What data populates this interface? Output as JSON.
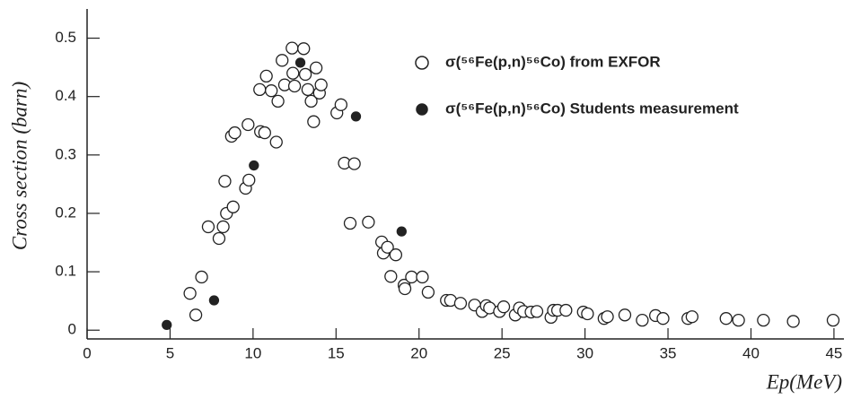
{
  "chart_data": {
    "type": "scatter",
    "x_label": "Ep(MeV)",
    "y_label": "Cross section (barn)",
    "xlim": [
      0,
      45.6
    ],
    "ylim": [
      -0.015,
      0.55
    ],
    "xticks": [
      0,
      5,
      10,
      15,
      20,
      25,
      30,
      35,
      40,
      45
    ],
    "yticks": [
      0,
      0.1,
      0.2,
      0.3,
      0.4,
      0.5
    ],
    "series": [
      {
        "name": "σ(⁵⁶Fe(p,n)⁵⁶Co) from EXFOR",
        "color": "#222",
        "filled": false,
        "x": [
          6.2,
          6.55,
          6.9,
          7.3,
          7.95,
          8.2,
          8.3,
          8.4,
          8.8,
          8.7,
          8.9,
          9.55,
          9.75,
          9.7,
          10.4,
          10.45,
          10.7,
          10.8,
          11.1,
          11.4,
          11.5,
          11.75,
          11.9,
          12.35,
          12.4,
          12.5,
          13.05,
          13.15,
          13.3,
          13.5,
          13.65,
          13.8,
          14.0,
          14.1,
          15.05,
          15.3,
          15.5,
          16.1,
          15.85,
          16.95,
          17.75,
          17.85,
          18.1,
          18.3,
          18.6,
          19.1,
          19.15,
          19.55,
          20.2,
          20.55,
          21.65,
          21.9,
          22.5,
          23.35,
          23.8,
          24.05,
          24.25,
          24.85,
          25.1,
          25.8,
          26.05,
          26.3,
          26.75,
          27.1,
          27.95,
          28.1,
          28.35,
          28.85,
          29.9,
          30.15,
          31.15,
          31.35,
          32.4,
          33.45,
          34.25,
          34.7,
          36.2,
          36.45,
          38.5,
          39.25,
          40.75,
          42.55,
          44.95
        ],
        "values": [
          0.063,
          0.026,
          0.091,
          0.177,
          0.157,
          0.177,
          0.255,
          0.2,
          0.211,
          0.332,
          0.338,
          0.243,
          0.257,
          0.352,
          0.412,
          0.34,
          0.338,
          0.435,
          0.41,
          0.322,
          0.392,
          0.462,
          0.42,
          0.483,
          0.44,
          0.418,
          0.482,
          0.438,
          0.412,
          0.392,
          0.357,
          0.449,
          0.406,
          0.42,
          0.372,
          0.386,
          0.286,
          0.285,
          0.183,
          0.185,
          0.151,
          0.132,
          0.142,
          0.092,
          0.129,
          0.077,
          0.071,
          0.091,
          0.091,
          0.065,
          0.051,
          0.051,
          0.046,
          0.043,
          0.032,
          0.042,
          0.038,
          0.032,
          0.04,
          0.026,
          0.038,
          0.032,
          0.031,
          0.032,
          0.022,
          0.034,
          0.034,
          0.034,
          0.031,
          0.028,
          0.02,
          0.023,
          0.026,
          0.017,
          0.025,
          0.02,
          0.02,
          0.023,
          0.02,
          0.017,
          0.017,
          0.015,
          0.017
        ]
      },
      {
        "name": "σ(⁵⁶Fe(p,n)⁵⁶Co) Students measurement",
        "color": "#222",
        "filled": true,
        "x": [
          4.8,
          7.65,
          10.05,
          12.85,
          16.2,
          18.95
        ],
        "values": [
          0.009,
          0.051,
          0.282,
          0.458,
          0.366,
          0.169
        ]
      }
    ]
  }
}
